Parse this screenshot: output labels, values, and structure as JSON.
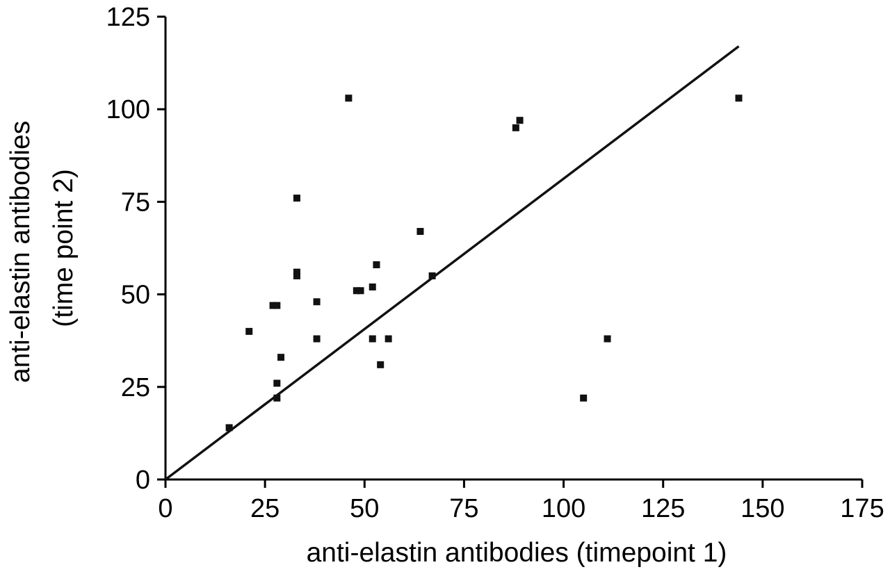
{
  "chart_data": {
    "type": "scatter",
    "title": "",
    "xlabel": "anti-elastin antibodies (timepoint 1)",
    "ylabel": "anti-elastin antibodies (time point 2)",
    "ylabel_lines": [
      "anti-elastin antibodies",
      "(time point 2)"
    ],
    "xlim": [
      0,
      175
    ],
    "ylim": [
      0,
      125
    ],
    "xticks": [
      "0",
      "25",
      "50",
      "75",
      "100",
      "125",
      "150",
      "175"
    ],
    "yticks": [
      "0",
      "25",
      "50",
      "75",
      "100",
      "125"
    ],
    "grid": false,
    "legend": "none",
    "series": [
      {
        "x": [
          16,
          21,
          27,
          28,
          28,
          28,
          29,
          33,
          33,
          33,
          38,
          38,
          46,
          48,
          49,
          52,
          52,
          53,
          53,
          54,
          56,
          64,
          67,
          88,
          89,
          105,
          111,
          144
        ],
        "y": [
          14,
          40,
          47,
          47,
          26,
          22,
          33,
          76,
          56,
          55,
          48,
          38,
          103,
          51,
          51,
          52,
          38,
          58,
          58,
          31,
          38,
          67,
          55,
          95,
          97,
          22,
          38,
          103
        ]
      }
    ],
    "fit_line": {
      "x": [
        0,
        144
      ],
      "y": [
        0,
        117
      ]
    }
  }
}
